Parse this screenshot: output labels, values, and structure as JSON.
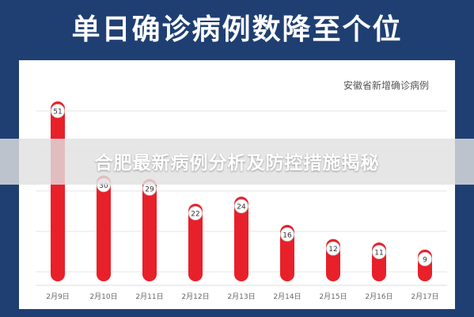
{
  "page": {
    "banner_title": "单日确诊病例数降至个位",
    "overlay_caption": "合肥最新病例分析及防控措施揭秘"
  },
  "colors": {
    "background": "#1f3f73",
    "bar": "#e8202a",
    "panel": "#ffffff"
  },
  "chart_data": {
    "type": "bar",
    "title": "安徽省新增确诊病例",
    "categories": [
      "2月9日",
      "2月10日",
      "2月11日",
      "2月12日",
      "2月13日",
      "2月14日",
      "2月15日",
      "2月16日",
      "2月17日"
    ],
    "values": [
      51,
      30,
      29,
      22,
      24,
      16,
      12,
      11,
      9
    ],
    "xlabel": "",
    "ylabel": "",
    "ylim": [
      0,
      55
    ],
    "grid": true,
    "legend": "none"
  }
}
